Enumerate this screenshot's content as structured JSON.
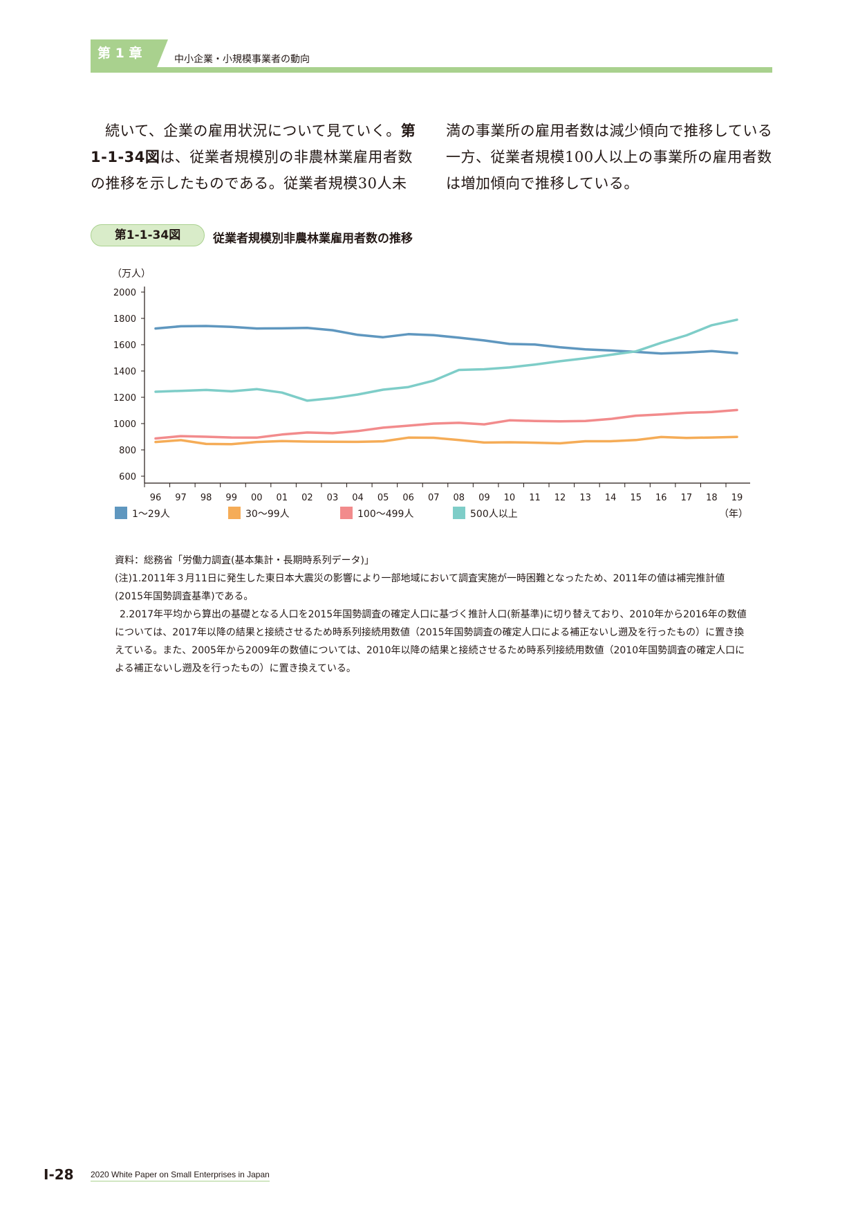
{
  "header": {
    "chapter_label": "第 1 章",
    "chapter_title": "中小企業・小規模事業者の動向"
  },
  "body": {
    "left_lead": "続いて、企業の雇用状況について見ていく。",
    "left_ref": "第1-1-34図",
    "left_rest": "は、従業者規模別の非農林業雇用者数の推移を示したものである。従業者規模30人未",
    "right": "満の事業所の雇用者数は減少傾向で推移している一方、従業者規模100人以上の事業所の雇用者数は増加傾向で推移している。"
  },
  "figure": {
    "number": "第1-1-34図",
    "title": "従業者規模別非農林業雇用者数の推移"
  },
  "chart_data": {
    "type": "line",
    "unit_label": "（万人）",
    "x_unit_label": "（年）",
    "categories": [
      "96",
      "97",
      "98",
      "99",
      "00",
      "01",
      "02",
      "03",
      "04",
      "05",
      "06",
      "07",
      "08",
      "09",
      "10",
      "11",
      "12",
      "13",
      "14",
      "15",
      "16",
      "17",
      "18",
      "19"
    ],
    "yticks": [
      600,
      800,
      1000,
      1200,
      1400,
      1600,
      1800,
      2000
    ],
    "ylim": [
      600,
      2000
    ],
    "grid": false,
    "legend_position": "bottom",
    "series": [
      {
        "name": "1～29人",
        "color": "#5f97bf",
        "values": [
          1723,
          1740,
          1742,
          1735,
          1723,
          1724,
          1728,
          1710,
          1675,
          1657,
          1680,
          1672,
          1653,
          1632,
          1606,
          1601,
          1580,
          1565,
          1556,
          1545,
          1533,
          1540,
          1551,
          1536
        ]
      },
      {
        "name": "30～99人",
        "color": "#f5ac57",
        "values": [
          860,
          874,
          845,
          843,
          860,
          867,
          863,
          862,
          861,
          865,
          893,
          892,
          875,
          856,
          858,
          855,
          850,
          866,
          866,
          875,
          898,
          891,
          894,
          899
        ]
      },
      {
        "name": "100～499人",
        "color": "#f28b8c",
        "values": [
          887,
          905,
          900,
          894,
          893,
          917,
          932,
          927,
          943,
          969,
          984,
          1000,
          1006,
          994,
          1025,
          1020,
          1017,
          1020,
          1035,
          1060,
          1070,
          1082,
          1088,
          1103
        ]
      },
      {
        "name": "500人以上",
        "color": "#7ecdc8",
        "values": [
          1242,
          1249,
          1256,
          1245,
          1262,
          1236,
          1174,
          1193,
          1221,
          1258,
          1278,
          1327,
          1408,
          1413,
          1427,
          1449,
          1474,
          1497,
          1523,
          1549,
          1614,
          1671,
          1748,
          1790
        ]
      }
    ]
  },
  "notes": {
    "source": "資料：総務省「労働力調査(基本集計・長期時系列データ)」",
    "note1": "(注)1.2011年３月11日に発生した東日本大震災の影響により一部地域において調査実施が一時困難となったため、2011年の値は補完推計値(2015年国勢調査基準)である。",
    "note2": "2.2017年平均から算出の基礎となる人口を2015年国勢調査の確定人口に基づく推計人口(新基準)に切り替えており、2010年から2016年の数値については、2017年以降の結果と接続させるため時系列接続用数値（2015年国勢調査の確定人口による補正ないし遡及を行ったもの）に置き換えている。また、2005年から2009年の数値については、2010年以降の結果と接続させるため時系列接続用数値（2010年国勢調査の確定人口による補正ないし遡及を行ったもの）に置き換えている。"
  },
  "footer": {
    "page_number": "Ⅰ-28",
    "publication": "2020 White Paper on Small Enterprises in Japan"
  }
}
